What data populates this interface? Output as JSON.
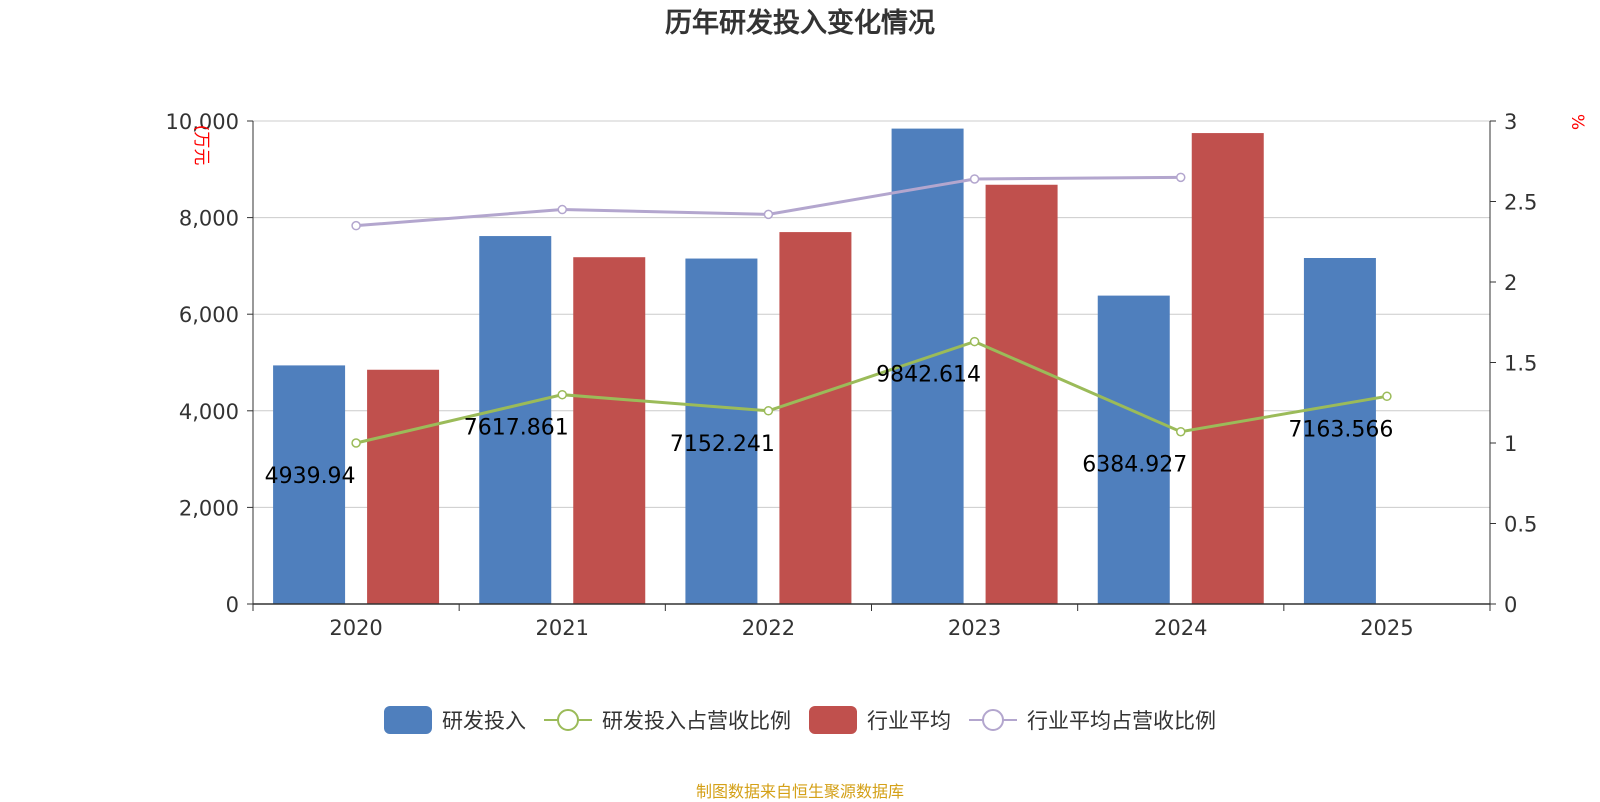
{
  "chart_data": {
    "type": "bar",
    "title": "历年研发投入变化情况",
    "categories": [
      "2020",
      "2021",
      "2022",
      "2023",
      "2024",
      "2025"
    ],
    "left_axis": {
      "unit_label": "(万元",
      "ylim": [
        0,
        10000
      ],
      "ticks": [
        "0",
        "2,000",
        "4,000",
        "6,000",
        "8,000",
        "10,000"
      ],
      "tick_values": [
        0,
        2000,
        4000,
        6000,
        8000,
        10000
      ]
    },
    "right_axis": {
      "unit_label": "%",
      "ylim": [
        0,
        3
      ],
      "ticks": [
        "0",
        "0.5",
        "1",
        "1.5",
        "2",
        "2.5",
        "3"
      ],
      "tick_values": [
        0,
        0.5,
        1,
        1.5,
        2,
        2.5,
        3
      ]
    },
    "grid": true,
    "legend_position": "bottom",
    "series": [
      {
        "name": "研发投入",
        "kind": "bar",
        "axis": "left",
        "color": "#4f7fbd",
        "values": [
          4939.94,
          7617.861,
          7152.241,
          9842.614,
          6384.927,
          7163.566
        ],
        "labels": [
          "4939.94",
          "7617.861",
          "7152.241",
          "9842.614",
          "6384.927",
          "7163.566"
        ]
      },
      {
        "name": "研发投入占营收比例",
        "kind": "line",
        "axis": "right",
        "color": "#9bbb59",
        "values": [
          1.0,
          1.3,
          1.2,
          1.63,
          1.07,
          1.29
        ]
      },
      {
        "name": "行业平均",
        "kind": "bar",
        "axis": "left",
        "color": "#c0504d",
        "values": [
          4850,
          7180,
          7700,
          8680,
          9750,
          null
        ]
      },
      {
        "name": "行业平均占营收比例",
        "kind": "line",
        "axis": "right",
        "color": "#b3a6ce",
        "values": [
          2.35,
          2.45,
          2.42,
          2.64,
          2.65,
          null
        ]
      }
    ]
  },
  "footer": {
    "source": "制图数据来自恒生聚源数据库"
  }
}
